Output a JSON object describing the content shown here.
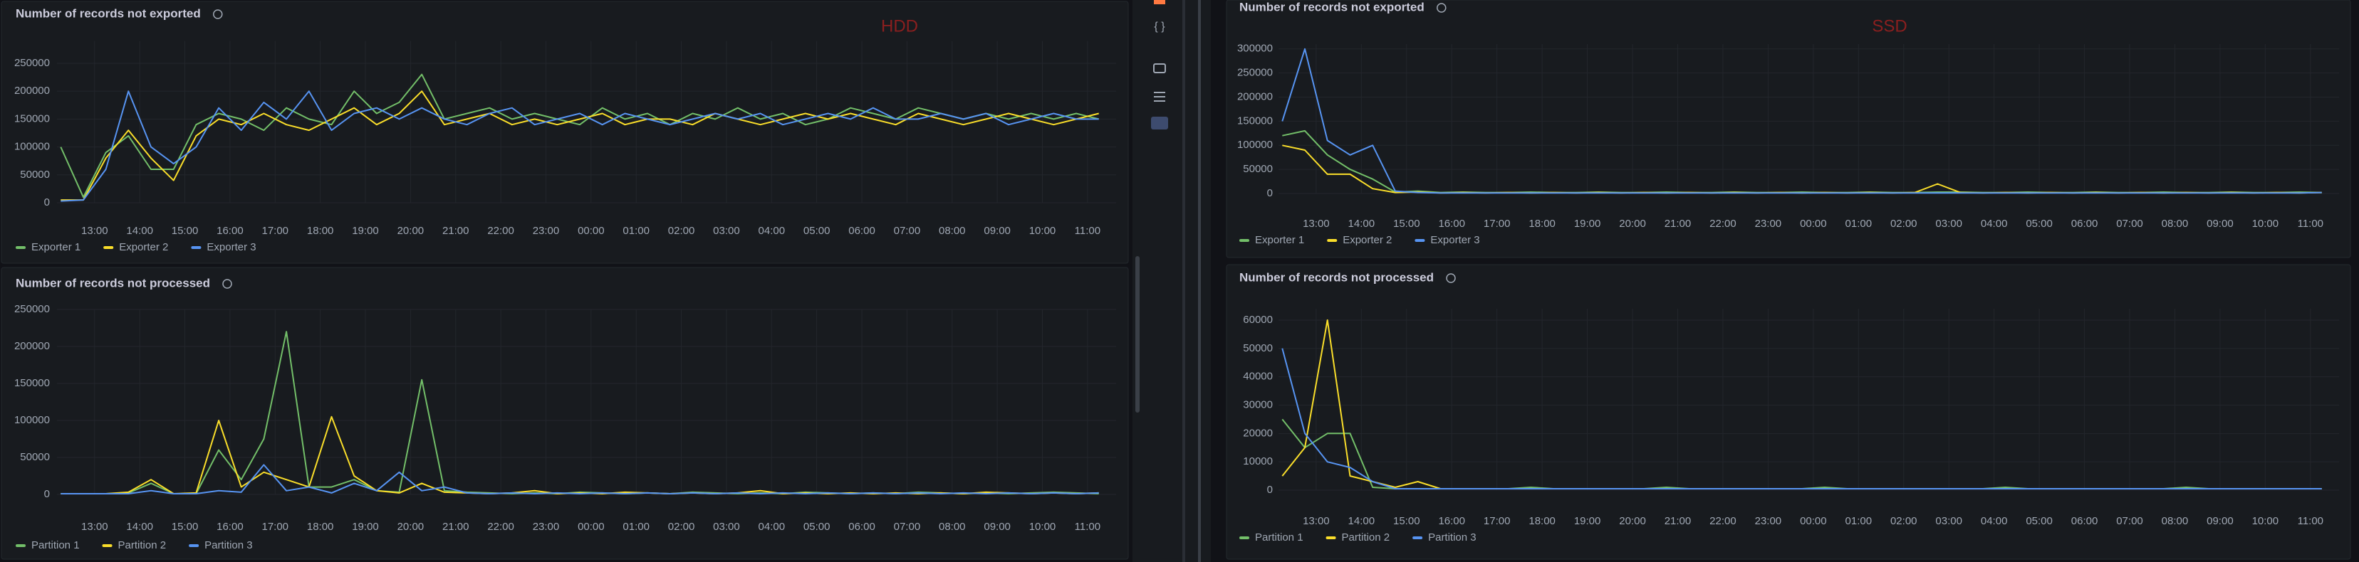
{
  "chart_data": [
    {
      "type": "line",
      "title": "Number of records not exported",
      "annotation": "HDD",
      "x": [
        "12:15",
        "12:45",
        "13:15",
        "13:45",
        "14:15",
        "14:45",
        "15:15",
        "15:45",
        "16:15",
        "16:45",
        "17:15",
        "17:45",
        "18:15",
        "18:45",
        "19:15",
        "19:45",
        "20:15",
        "20:45",
        "21:15",
        "21:45",
        "22:15",
        "22:45",
        "23:15",
        "23:45",
        "00:15",
        "00:45",
        "01:15",
        "01:45",
        "02:15",
        "02:45",
        "03:15",
        "03:45",
        "04:15",
        "04:45",
        "05:15",
        "05:45",
        "06:15",
        "06:45",
        "07:15",
        "07:45",
        "08:15",
        "08:45",
        "09:15",
        "09:45",
        "10:15",
        "10:45",
        "11:15"
      ],
      "xlim": [
        "12:10",
        "11:38"
      ],
      "xticks": [
        "13:00",
        "14:00",
        "15:00",
        "16:00",
        "17:00",
        "18:00",
        "19:00",
        "20:00",
        "21:00",
        "22:00",
        "23:00",
        "00:00",
        "01:00",
        "02:00",
        "03:00",
        "04:00",
        "05:00",
        "06:00",
        "07:00",
        "08:00",
        "09:00",
        "10:00",
        "11:00"
      ],
      "ylim": [
        0,
        290000
      ],
      "yticks": [
        0,
        50000,
        100000,
        150000,
        200000,
        250000
      ],
      "grid": true,
      "legend": "bottom-left",
      "series": [
        {
          "name": "Exporter 1",
          "color": "#73bf69",
          "values": [
            100000,
            10000,
            90000,
            120000,
            60000,
            60000,
            140000,
            160000,
            150000,
            130000,
            170000,
            150000,
            140000,
            200000,
            160000,
            180000,
            230000,
            150000,
            160000,
            170000,
            150000,
            160000,
            150000,
            140000,
            170000,
            150000,
            160000,
            140000,
            160000,
            150000,
            170000,
            150000,
            160000,
            140000,
            150000,
            170000,
            160000,
            150000,
            170000,
            160000,
            150000,
            160000,
            150000,
            160000,
            150000,
            160000,
            150000
          ]
        },
        {
          "name": "Exporter 2",
          "color": "#fade2a",
          "values": [
            5000,
            5000,
            80000,
            130000,
            80000,
            40000,
            120000,
            150000,
            140000,
            160000,
            140000,
            130000,
            150000,
            170000,
            140000,
            160000,
            200000,
            140000,
            150000,
            160000,
            140000,
            150000,
            140000,
            150000,
            160000,
            140000,
            150000,
            150000,
            140000,
            160000,
            150000,
            140000,
            150000,
            160000,
            150000,
            160000,
            150000,
            140000,
            160000,
            150000,
            140000,
            150000,
            160000,
            150000,
            140000,
            150000,
            160000
          ]
        },
        {
          "name": "Exporter 3",
          "color": "#5794f2",
          "values": [
            3000,
            5000,
            60000,
            200000,
            100000,
            70000,
            100000,
            170000,
            130000,
            180000,
            150000,
            200000,
            130000,
            160000,
            170000,
            150000,
            170000,
            150000,
            140000,
            160000,
            170000,
            140000,
            150000,
            160000,
            140000,
            160000,
            150000,
            140000,
            150000,
            160000,
            150000,
            160000,
            140000,
            150000,
            160000,
            150000,
            170000,
            150000,
            150000,
            160000,
            150000,
            160000,
            140000,
            150000,
            160000,
            150000,
            150000
          ]
        }
      ]
    },
    {
      "type": "line",
      "title": "Number of records not exported",
      "annotation": "SSD",
      "x": [
        "12:15",
        "12:45",
        "13:15",
        "13:45",
        "14:15",
        "14:45",
        "15:15",
        "15:45",
        "16:15",
        "16:45",
        "17:15",
        "17:45",
        "18:15",
        "18:45",
        "19:15",
        "19:45",
        "20:15",
        "20:45",
        "21:15",
        "21:45",
        "22:15",
        "22:45",
        "23:15",
        "23:45",
        "00:15",
        "00:45",
        "01:15",
        "01:45",
        "02:15",
        "02:45",
        "03:15",
        "03:45",
        "04:15",
        "04:45",
        "05:15",
        "05:45",
        "06:15",
        "06:45",
        "07:15",
        "07:45",
        "08:15",
        "08:45",
        "09:15",
        "09:45",
        "10:15",
        "10:45",
        "11:15"
      ],
      "xlim": [
        "12:10",
        "11:38"
      ],
      "xticks": [
        "13:00",
        "14:00",
        "15:00",
        "16:00",
        "17:00",
        "18:00",
        "19:00",
        "20:00",
        "21:00",
        "22:00",
        "23:00",
        "00:00",
        "01:00",
        "02:00",
        "03:00",
        "04:00",
        "05:00",
        "06:00",
        "07:00",
        "08:00",
        "09:00",
        "10:00",
        "11:00"
      ],
      "ylim": [
        0,
        310000
      ],
      "yticks": [
        0,
        50000,
        100000,
        150000,
        200000,
        250000,
        300000
      ],
      "grid": true,
      "legend": "bottom-left",
      "series": [
        {
          "name": "Exporter 1",
          "color": "#73bf69",
          "values": [
            120000,
            130000,
            80000,
            50000,
            30000,
            3000,
            5000,
            2000,
            3000,
            2000,
            2000,
            3000,
            2000,
            2000,
            3000,
            2000,
            2000,
            3000,
            2000,
            2000,
            3000,
            2000,
            2000,
            3000,
            2000,
            2000,
            3000,
            2000,
            2000,
            3000,
            3000,
            2000,
            2000,
            3000,
            2000,
            2000,
            3000,
            2000,
            2000,
            3000,
            2000,
            2000,
            3000,
            2000,
            2000,
            3000,
            2000
          ]
        },
        {
          "name": "Exporter 2",
          "color": "#fade2a",
          "values": [
            100000,
            90000,
            40000,
            40000,
            10000,
            2000,
            3000,
            1000,
            2000,
            1000,
            2000,
            1000,
            2000,
            1000,
            2000,
            1000,
            2000,
            1000,
            2000,
            1000,
            2000,
            1000,
            2000,
            1000,
            2000,
            1000,
            2000,
            1000,
            2000,
            20000,
            2000,
            1000,
            2000,
            1000,
            2000,
            1000,
            2000,
            1000,
            2000,
            1000,
            2000,
            1000,
            2000,
            1000,
            2000,
            1000,
            2000
          ]
        },
        {
          "name": "Exporter 3",
          "color": "#5794f2",
          "values": [
            150000,
            300000,
            110000,
            80000,
            100000,
            5000,
            2000,
            1000,
            1000,
            1000,
            1000,
            1000,
            1000,
            1000,
            1000,
            1000,
            1000,
            1000,
            1000,
            1000,
            1000,
            1000,
            1000,
            1000,
            1000,
            1000,
            1000,
            1000,
            1000,
            1000,
            1000,
            1000,
            1000,
            1000,
            1000,
            1000,
            1000,
            1000,
            1000,
            1000,
            1000,
            1000,
            1000,
            1000,
            1000,
            1000,
            2000
          ]
        }
      ]
    },
    {
      "type": "line",
      "title": "Number of records not processed",
      "x": [
        "12:15",
        "12:45",
        "13:15",
        "13:45",
        "14:15",
        "14:45",
        "15:15",
        "15:45",
        "16:15",
        "16:45",
        "17:15",
        "17:45",
        "18:15",
        "18:45",
        "19:15",
        "19:45",
        "20:15",
        "20:45",
        "21:15",
        "21:45",
        "22:15",
        "22:45",
        "23:15",
        "23:45",
        "00:15",
        "00:45",
        "01:15",
        "01:45",
        "02:15",
        "02:45",
        "03:15",
        "03:45",
        "04:15",
        "04:45",
        "05:15",
        "05:45",
        "06:15",
        "06:45",
        "07:15",
        "07:45",
        "08:15",
        "08:45",
        "09:15",
        "09:45",
        "10:15",
        "10:45",
        "11:15"
      ],
      "xlim": [
        "12:10",
        "11:38"
      ],
      "xticks": [
        "13:00",
        "14:00",
        "15:00",
        "16:00",
        "17:00",
        "18:00",
        "19:00",
        "20:00",
        "21:00",
        "22:00",
        "23:00",
        "00:00",
        "01:00",
        "02:00",
        "03:00",
        "04:00",
        "05:00",
        "06:00",
        "07:00",
        "08:00",
        "09:00",
        "10:00",
        "11:00"
      ],
      "ylim": [
        0,
        250000
      ],
      "yticks": [
        0,
        50000,
        100000,
        150000,
        200000,
        250000
      ],
      "grid": true,
      "legend": "bottom-left",
      "series": [
        {
          "name": "Partition 1",
          "color": "#73bf69",
          "values": [
            1000,
            1000,
            1000,
            2000,
            15000,
            1000,
            1000,
            60000,
            20000,
            75000,
            220000,
            10000,
            10000,
            20000,
            5000,
            3000,
            155000,
            5000,
            3000,
            2000,
            1000,
            2000,
            1000,
            3000,
            2000,
            1000,
            2000,
            1000,
            3000,
            2000,
            1000,
            2000,
            1000,
            3000,
            2000,
            1000,
            2000,
            1000,
            3000,
            2000,
            1000,
            2000,
            1000,
            2000,
            3000,
            2000,
            1000
          ]
        },
        {
          "name": "Partition 2",
          "color": "#fade2a",
          "values": [
            1000,
            1000,
            1000,
            3000,
            20000,
            1000,
            2000,
            100000,
            10000,
            30000,
            20000,
            10000,
            105000,
            25000,
            5000,
            2000,
            15000,
            3000,
            2000,
            1000,
            2000,
            5000,
            1000,
            2000,
            1000,
            3000,
            2000,
            1000,
            2000,
            1000,
            2000,
            5000,
            1000,
            2000,
            1000,
            2000,
            1000,
            2000,
            1000,
            2000,
            1000,
            3000,
            2000,
            1000,
            2000,
            1000,
            2000
          ]
        },
        {
          "name": "Partition 3",
          "color": "#5794f2",
          "values": [
            1000,
            1000,
            1000,
            1000,
            5000,
            1000,
            1000,
            5000,
            3000,
            40000,
            5000,
            10000,
            2000,
            15000,
            5000,
            30000,
            5000,
            10000,
            2000,
            1000,
            2000,
            1000,
            2000,
            1000,
            2000,
            1000,
            2000,
            1000,
            2000,
            1000,
            2000,
            1000,
            2000,
            1000,
            2000,
            1000,
            2000,
            1000,
            2000,
            1000,
            2000,
            1000,
            2000,
            1000,
            2000,
            1000,
            2000
          ]
        }
      ]
    },
    {
      "type": "line",
      "title": "Number of records not processed",
      "x": [
        "12:15",
        "12:45",
        "13:15",
        "13:45",
        "14:15",
        "14:45",
        "15:15",
        "15:45",
        "16:15",
        "16:45",
        "17:15",
        "17:45",
        "18:15",
        "18:45",
        "19:15",
        "19:45",
        "20:15",
        "20:45",
        "21:15",
        "21:45",
        "22:15",
        "22:45",
        "23:15",
        "23:45",
        "00:15",
        "00:45",
        "01:15",
        "01:45",
        "02:15",
        "02:45",
        "03:15",
        "03:45",
        "04:15",
        "04:45",
        "05:15",
        "05:45",
        "06:15",
        "06:45",
        "07:15",
        "07:45",
        "08:15",
        "08:45",
        "09:15",
        "09:45",
        "10:15",
        "10:45",
        "11:15"
      ],
      "xlim": [
        "12:10",
        "11:38"
      ],
      "xticks": [
        "13:00",
        "14:00",
        "15:00",
        "16:00",
        "17:00",
        "18:00",
        "19:00",
        "20:00",
        "21:00",
        "22:00",
        "23:00",
        "00:00",
        "01:00",
        "02:00",
        "03:00",
        "04:00",
        "05:00",
        "06:00",
        "07:00",
        "08:00",
        "09:00",
        "10:00",
        "11:00"
      ],
      "ylim": [
        0,
        64000
      ],
      "yticks": [
        0,
        10000,
        20000,
        30000,
        40000,
        50000,
        60000
      ],
      "grid": true,
      "legend": "bottom-left",
      "series": [
        {
          "name": "Partition 1",
          "color": "#73bf69",
          "values": [
            25000,
            15000,
            20000,
            20000,
            1000,
            500,
            500,
            500,
            500,
            500,
            500,
            1000,
            500,
            500,
            500,
            500,
            500,
            1000,
            500,
            500,
            500,
            500,
            500,
            500,
            1000,
            500,
            500,
            500,
            500,
            500,
            500,
            500,
            1000,
            500,
            500,
            500,
            500,
            500,
            500,
            500,
            1000,
            500,
            500,
            500,
            500,
            500,
            500
          ]
        },
        {
          "name": "Partition 2",
          "color": "#fade2a",
          "values": [
            5000,
            15000,
            60000,
            5000,
            3000,
            1000,
            3000,
            500,
            500,
            500,
            500,
            500,
            500,
            500,
            500,
            500,
            500,
            500,
            500,
            500,
            500,
            500,
            500,
            500,
            500,
            500,
            500,
            500,
            500,
            500,
            500,
            500,
            500,
            500,
            500,
            500,
            500,
            500,
            500,
            500,
            500,
            500,
            500,
            500,
            500,
            500,
            500
          ]
        },
        {
          "name": "Partition 3",
          "color": "#5794f2",
          "values": [
            50000,
            20000,
            10000,
            8000,
            3000,
            500,
            500,
            500,
            500,
            500,
            500,
            500,
            500,
            500,
            500,
            500,
            500,
            500,
            500,
            500,
            500,
            500,
            500,
            500,
            500,
            500,
            500,
            500,
            500,
            500,
            500,
            500,
            500,
            500,
            500,
            500,
            500,
            500,
            500,
            500,
            500,
            500,
            500,
            500,
            500,
            500,
            500
          ]
        }
      ]
    }
  ]
}
